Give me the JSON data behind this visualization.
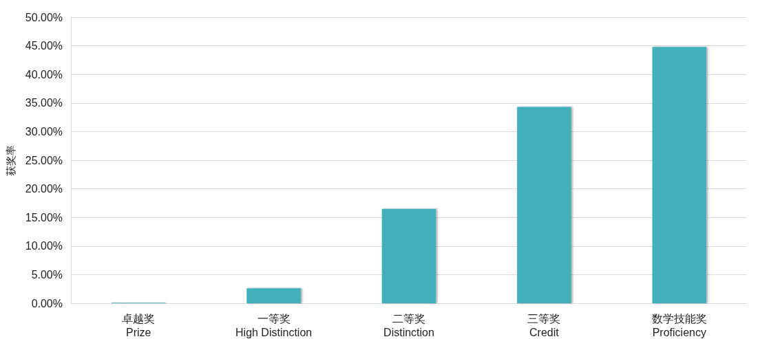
{
  "chart_data": {
    "type": "bar",
    "ylabel": "获奖率",
    "categories": [
      "卓越奖\nPrize",
      "一等奖\nHigh Distinction",
      "二等奖\nDistinction",
      "三等奖\nCredit",
      "数学技能奖\nProficiency"
    ],
    "values": [
      0.1,
      2.6,
      16.5,
      34.3,
      44.8
    ],
    "color": "#43b0bb",
    "ylim": [
      0,
      50
    ],
    "yticks": [
      {
        "value": 0,
        "label": "0.00%"
      },
      {
        "value": 5,
        "label": "5.00%"
      },
      {
        "value": 10,
        "label": "10.00%"
      },
      {
        "value": 15,
        "label": "15.00%"
      },
      {
        "value": 20,
        "label": "20.00%"
      },
      {
        "value": 25,
        "label": "25.00%"
      },
      {
        "value": 30,
        "label": "30.00%"
      },
      {
        "value": 35,
        "label": "35.00%"
      },
      {
        "value": 40,
        "label": "40.00%"
      },
      {
        "value": 45,
        "label": "45.00%"
      },
      {
        "value": 50,
        "label": "50.00%"
      }
    ],
    "grid": "y"
  }
}
